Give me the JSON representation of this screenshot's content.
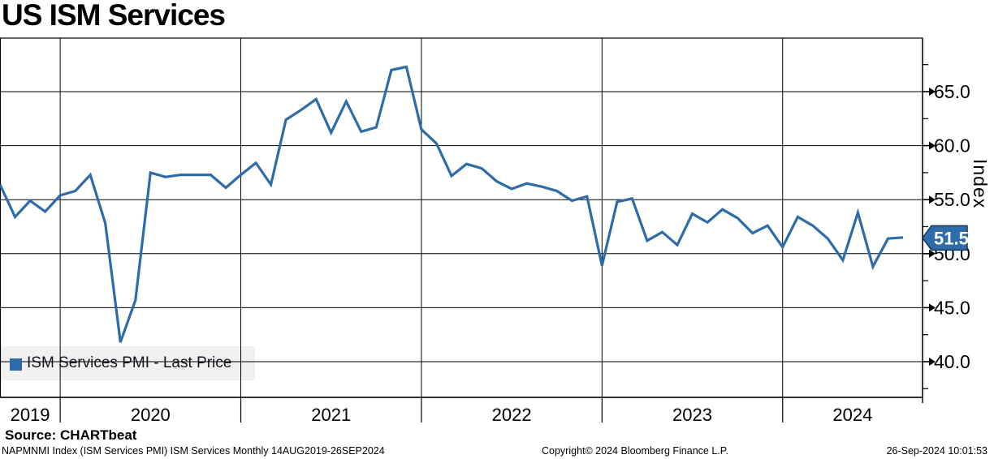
{
  "title": "US ISM Services",
  "source_line": "Source: CHARTbeat",
  "footer": {
    "left": "NAPMNMI Index (ISM Services PMI) ISM Services  Monthly 14AUG2019-26SEP2024",
    "center": "Copyright© 2024 Bloomberg Finance L.P.",
    "right": "26-Sep-2024 10:01:53"
  },
  "legend": {
    "label": "ISM Services PMI - Last Price"
  },
  "last_price_badge": {
    "value": "51.5"
  },
  "colors": {
    "line": "#2d6ca8",
    "legend_swatch": "#2d6ca8",
    "legend_bg": "#f1f1f1",
    "grid": "#000000",
    "badge_bg": "#2d6ca8",
    "badge_border": "#16365c",
    "badge_text": "#ffffff",
    "text": "#000000"
  },
  "chart_data": {
    "type": "line",
    "title": "US ISM Services",
    "xlabel": "",
    "ylabel": "Index",
    "ylim": [
      36.6,
      70.0
    ],
    "grid": true,
    "legend_position": "bottom-left",
    "y_major_ticks": [
      40.0,
      45.0,
      50.0,
      55.0,
      60.0,
      65.0
    ],
    "y_minor_ticks": [
      37.5,
      42.5,
      47.5,
      52.5,
      57.5,
      62.5,
      67.5
    ],
    "year_labels": [
      "2019",
      "2020",
      "2021",
      "2022",
      "2023",
      "2024"
    ],
    "x": [
      "2019-08",
      "2019-09",
      "2019-10",
      "2019-11",
      "2019-12",
      "2020-01",
      "2020-02",
      "2020-03",
      "2020-04",
      "2020-05",
      "2020-06",
      "2020-07",
      "2020-08",
      "2020-09",
      "2020-10",
      "2020-11",
      "2020-12",
      "2021-01",
      "2021-02",
      "2021-03",
      "2021-04",
      "2021-05",
      "2021-06",
      "2021-07",
      "2021-08",
      "2021-09",
      "2021-10",
      "2021-11",
      "2021-12",
      "2022-01",
      "2022-02",
      "2022-03",
      "2022-04",
      "2022-05",
      "2022-06",
      "2022-07",
      "2022-08",
      "2022-09",
      "2022-10",
      "2022-11",
      "2022-12",
      "2023-01",
      "2023-02",
      "2023-03",
      "2023-04",
      "2023-05",
      "2023-06",
      "2023-07",
      "2023-08",
      "2023-09",
      "2023-10",
      "2023-11",
      "2023-12",
      "2024-01",
      "2024-02",
      "2024-03",
      "2024-04",
      "2024-05",
      "2024-06",
      "2024-07",
      "2024-08"
    ],
    "series": [
      {
        "name": "ISM Services PMI - Last Price",
        "color": "#2d6ca8",
        "frequency": "monthly",
        "last_value": 51.5,
        "values": [
          56.4,
          53.4,
          54.9,
          53.9,
          55.4,
          55.8,
          57.3,
          52.8,
          41.8,
          45.7,
          57.5,
          57.1,
          57.3,
          57.3,
          57.3,
          56.1,
          57.3,
          58.4,
          56.4,
          62.4,
          63.3,
          64.3,
          61.2,
          64.1,
          61.3,
          61.7,
          67.0,
          67.3,
          61.5,
          60.2,
          57.2,
          58.3,
          57.9,
          56.7,
          56.0,
          56.5,
          56.2,
          55.8,
          54.9,
          55.3,
          48.9,
          54.8,
          55.1,
          51.2,
          52.0,
          50.8,
          53.7,
          52.9,
          54.1,
          53.3,
          51.9,
          52.6,
          50.6,
          53.4,
          52.6,
          51.4,
          49.4,
          53.8,
          48.8,
          51.4,
          51.5
        ]
      }
    ]
  }
}
